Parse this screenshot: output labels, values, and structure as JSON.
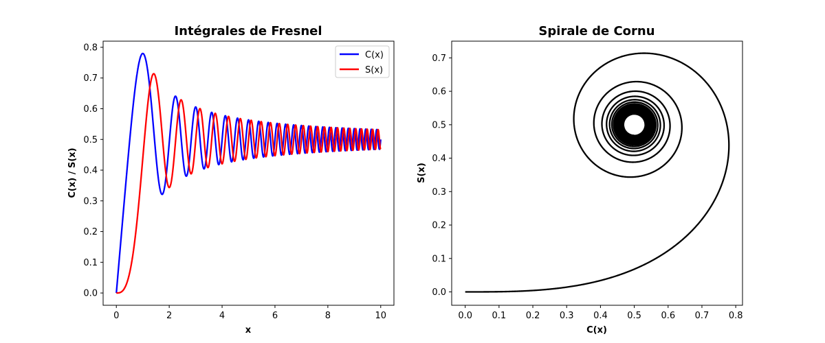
{
  "chart_data": [
    {
      "type": "line",
      "title": "Intégrales de Fresnel",
      "xlabel": "x",
      "ylabel": "C(x) / S(x)",
      "xlim": [
        -0.5,
        10.5
      ],
      "ylim": [
        -0.04,
        0.82
      ],
      "xticks": [
        "0",
        "2",
        "4",
        "6",
        "8",
        "10"
      ],
      "yticks": [
        "0.0",
        "0.1",
        "0.2",
        "0.3",
        "0.4",
        "0.5",
        "0.6",
        "0.7",
        "0.8"
      ],
      "grid": false,
      "legend": "top-right",
      "function": "fresnel",
      "x_range": [
        0,
        10
      ],
      "series": [
        {
          "name": "C(x)",
          "color": "#0000ff"
        },
        {
          "name": "S(x)",
          "color": "#ff0000"
        }
      ]
    },
    {
      "type": "line",
      "title": "Spirale de Cornu",
      "xlabel": "C(x)",
      "ylabel": "S(x)",
      "xlim": [
        -0.04,
        0.82
      ],
      "ylim": [
        -0.04,
        0.75
      ],
      "xticks": [
        "0.0",
        "0.1",
        "0.2",
        "0.3",
        "0.4",
        "0.5",
        "0.6",
        "0.7",
        "0.8"
      ],
      "yticks": [
        "0.0",
        "0.1",
        "0.2",
        "0.3",
        "0.4",
        "0.5",
        "0.6",
        "0.7"
      ],
      "grid": false,
      "function": "cornu spiral",
      "x_range": [
        0,
        10
      ],
      "series": [
        {
          "color": "#000000"
        }
      ]
    }
  ]
}
